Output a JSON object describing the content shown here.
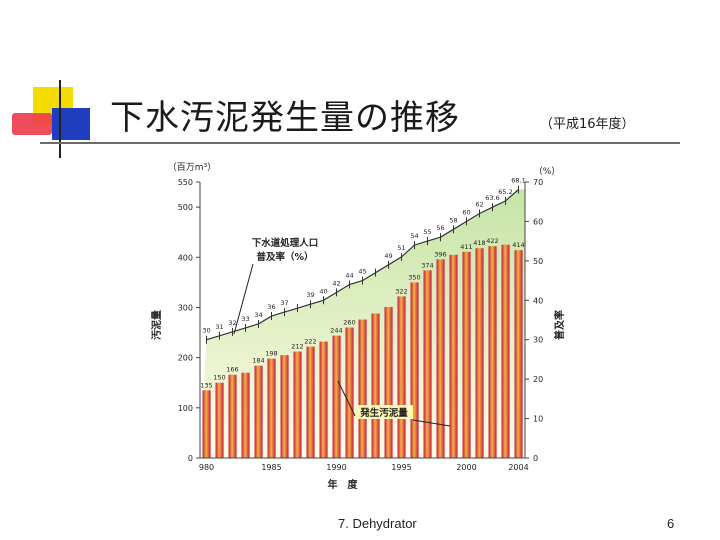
{
  "title": "下水汚泥発生量の推移",
  "subtitle": "（平成16年度）",
  "footer": "7. Dehydrator",
  "page_number": "6",
  "colors": {
    "bar": "#c8174f",
    "bar_highlight": "#f1b43a",
    "area_top": "#c6e4a6",
    "area_bottom": "#fffce6",
    "title_rule": "#6b6b6b"
  },
  "chart_data": {
    "type": "bar",
    "xlabel": "年　度",
    "ylabel_left": "汚泥量",
    "ylabel_right": "普及率",
    "unit_left": "（百万m³）",
    "unit_right": "（%）",
    "ylim_left": [
      0,
      550
    ],
    "ylim_right": [
      0,
      70
    ],
    "yticks_left": [
      "0",
      "100",
      "200",
      "300",
      "400",
      "500",
      "550"
    ],
    "yticks_right": [
      "0",
      "10",
      "20",
      "30",
      "40",
      "50",
      "60",
      "70"
    ],
    "xticks": [
      "980",
      "1985",
      "1990",
      "1995",
      "2000",
      "2004"
    ],
    "categories": [
      1980,
      1981,
      1982,
      1983,
      1984,
      1985,
      1986,
      1987,
      1988,
      1989,
      1990,
      1991,
      1992,
      1993,
      1994,
      1995,
      1996,
      1997,
      1998,
      1999,
      2000,
      2001,
      2002,
      2003,
      2004
    ],
    "series": [
      {
        "name": "発生汚泥量",
        "type": "bar",
        "axis": "left",
        "values": [
          135,
          150,
          166,
          170,
          184,
          198,
          205,
          212,
          222,
          232,
          244,
          260,
          276,
          288,
          301,
          322,
          350,
          374,
          396,
          405,
          411,
          418,
          422,
          425,
          414
        ],
        "labels": [
          "135",
          "150",
          "166",
          "",
          "184",
          "198",
          "",
          "212",
          "222",
          "",
          "244",
          "260",
          "",
          "",
          "",
          "322",
          "350",
          "374",
          "396",
          "",
          "411",
          "418",
          "422",
          "",
          "414"
        ]
      },
      {
        "name": "下水道処理人口普及率（%）",
        "type": "area",
        "axis": "right",
        "values": [
          30,
          31,
          32,
          33,
          34,
          36,
          37,
          38,
          39,
          40,
          42,
          44,
          45,
          47,
          49,
          51,
          54,
          55,
          56,
          58,
          60,
          62,
          63.6,
          65.2,
          68.1
        ],
        "labels": [
          "30",
          "31",
          "32",
          "33",
          "34",
          "36",
          "37",
          "",
          "39",
          "40",
          "42",
          "44",
          "45",
          "",
          "49",
          "51",
          "54",
          "55",
          "56",
          "58",
          "60",
          "62",
          "63.6",
          "65.2",
          "68.1"
        ]
      }
    ],
    "annotations": [
      {
        "text": "下水道処理人口",
        "text2": "普及率（%）",
        "target": "area"
      },
      {
        "text": "発生汚泥量",
        "target": "bars"
      }
    ]
  }
}
